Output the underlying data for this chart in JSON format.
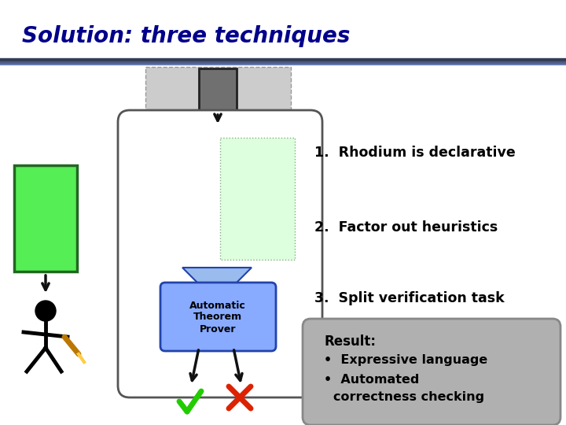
{
  "title": "Solution: three techniques",
  "title_color": "#00008B",
  "title_fontsize": 20,
  "bg_color": "#FFFFFF",
  "item1": "1.  Rhodium is declarative",
  "item2": "2.  Factor out heuristics",
  "item3": "3.  Split verification task",
  "result_title": "Result:",
  "result_bullet1": "Expressive language",
  "result_bullet2a": "Automated",
  "result_bullet2b": "    correctness checking",
  "result_box_bg": "#B0B0B0",
  "green_rect_fill": "#55EE55",
  "green_rect_edge": "#226622",
  "light_green_fill": "#DDFFDD",
  "gray_top_fill": "#CCCCCC",
  "gray_top_edge": "#999999",
  "dark_rect_fill": "#707070",
  "dark_rect_edge": "#222222",
  "rounded_box_fill": "#FFFFFF",
  "rounded_box_edge": "#555555",
  "atp_fill": "#88AAFF",
  "atp_edge": "#2244AA",
  "funnel_fill": "#99BBEE",
  "funnel_edge": "#2244AA",
  "check_color": "#22CC00",
  "cross_color": "#DD2200",
  "arrow_color": "#111111",
  "line_colors": [
    "#7090C0",
    "#8090B0",
    "#A0A8C0"
  ]
}
